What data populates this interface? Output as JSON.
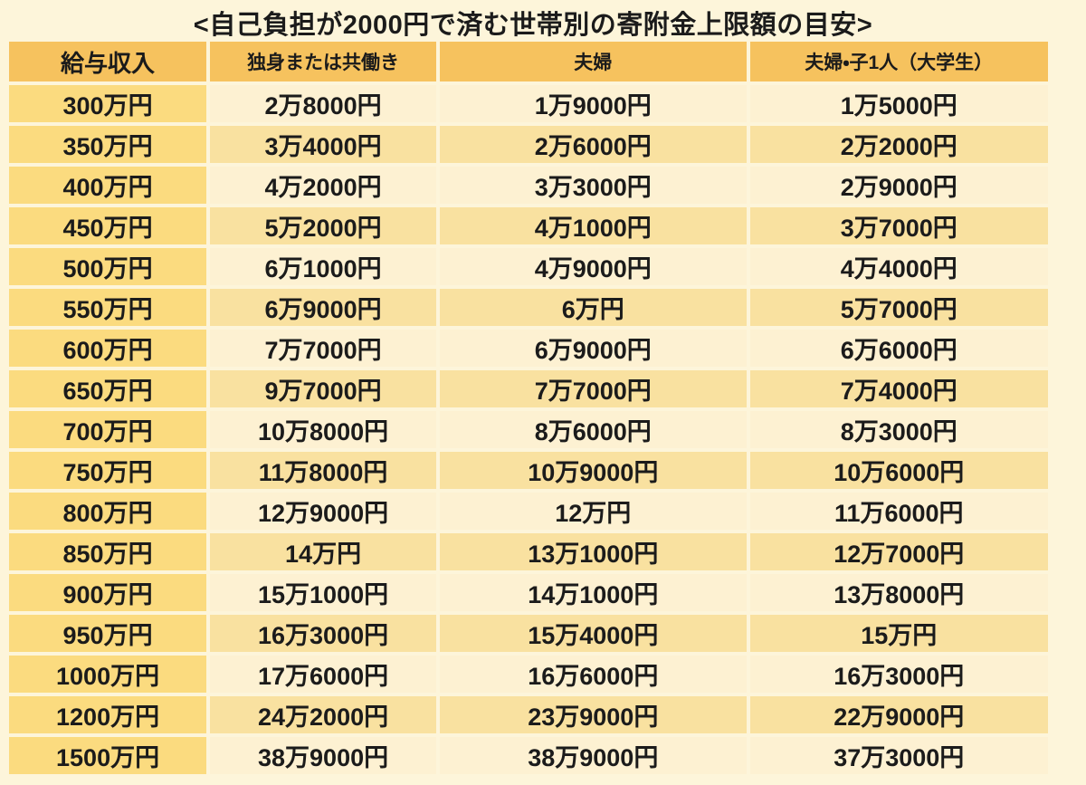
{
  "title": "<自己負担が2000円で済む世帯別の寄附金上限額の目安>",
  "colors": {
    "page_bg": "#FDF5DA",
    "header_bg": "#F6C25E",
    "income_column_bg": "#FBDB7F",
    "row_light_bg": "#FDF1D2",
    "row_dark_bg": "#F9E1A0",
    "text": "#1B1B1B"
  },
  "chart_data": {
    "type": "table",
    "title": "<自己負担が2000円で済む世帯別の寄附金上限額の目安>",
    "columns": [
      "給与収入",
      "独身または共働き",
      "夫婦",
      "夫婦・子1人（大学生）"
    ],
    "rows": [
      [
        "300万円",
        "2万8000円",
        "1万9000円",
        "1万5000円"
      ],
      [
        "350万円",
        "3万4000円",
        "2万6000円",
        "2万2000円"
      ],
      [
        "400万円",
        "4万2000円",
        "3万3000円",
        "2万9000円"
      ],
      [
        "450万円",
        "5万2000円",
        "4万1000円",
        "3万7000円"
      ],
      [
        "500万円",
        "6万1000円",
        "4万9000円",
        "4万4000円"
      ],
      [
        "550万円",
        "6万9000円",
        "6万円",
        "5万7000円"
      ],
      [
        "600万円",
        "7万7000円",
        "6万9000円",
        "6万6000円"
      ],
      [
        "650万円",
        "9万7000円",
        "7万7000円",
        "7万4000円"
      ],
      [
        "700万円",
        "10万8000円",
        "8万6000円",
        "8万3000円"
      ],
      [
        "750万円",
        "11万8000円",
        "10万9000円",
        "10万6000円"
      ],
      [
        "800万円",
        "12万9000円",
        "12万円",
        "11万6000円"
      ],
      [
        "850万円",
        "14万円",
        "13万1000円",
        "12万7000円"
      ],
      [
        "900万円",
        "15万1000円",
        "14万1000円",
        "13万8000円"
      ],
      [
        "950万円",
        "16万3000円",
        "15万4000円",
        "15万円"
      ],
      [
        "1000万円",
        "17万6000円",
        "16万6000円",
        "16万3000円"
      ],
      [
        "1200万円",
        "24万2000円",
        "23万9000円",
        "22万9000円"
      ],
      [
        "1500万円",
        "38万9000円",
        "38万9000円",
        "37万3000円"
      ]
    ]
  }
}
